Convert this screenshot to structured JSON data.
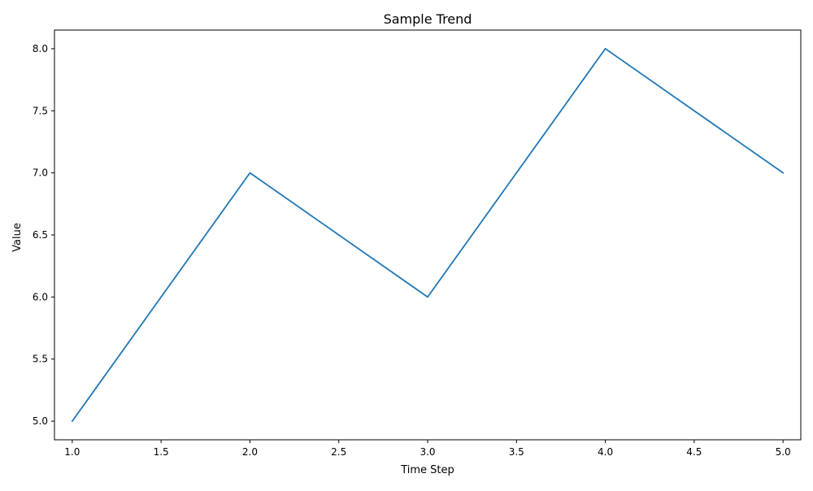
{
  "chart_data": {
    "type": "line",
    "title": "Sample Trend",
    "xlabel": "Time Step",
    "ylabel": "Value",
    "xlim": [
      0.9,
      5.1
    ],
    "ylim": [
      4.85,
      8.15
    ],
    "x_ticks": [
      1.0,
      1.5,
      2.0,
      2.5,
      3.0,
      3.5,
      4.0,
      4.5,
      5.0
    ],
    "y_ticks": [
      5.0,
      5.5,
      6.0,
      6.5,
      7.0,
      7.5,
      8.0
    ],
    "grid": false,
    "legend": "none",
    "series": [
      {
        "x": [
          1,
          2,
          3,
          4,
          5
        ],
        "y": [
          5,
          7,
          6,
          8,
          7
        ],
        "color": "#1f77b4"
      }
    ]
  }
}
